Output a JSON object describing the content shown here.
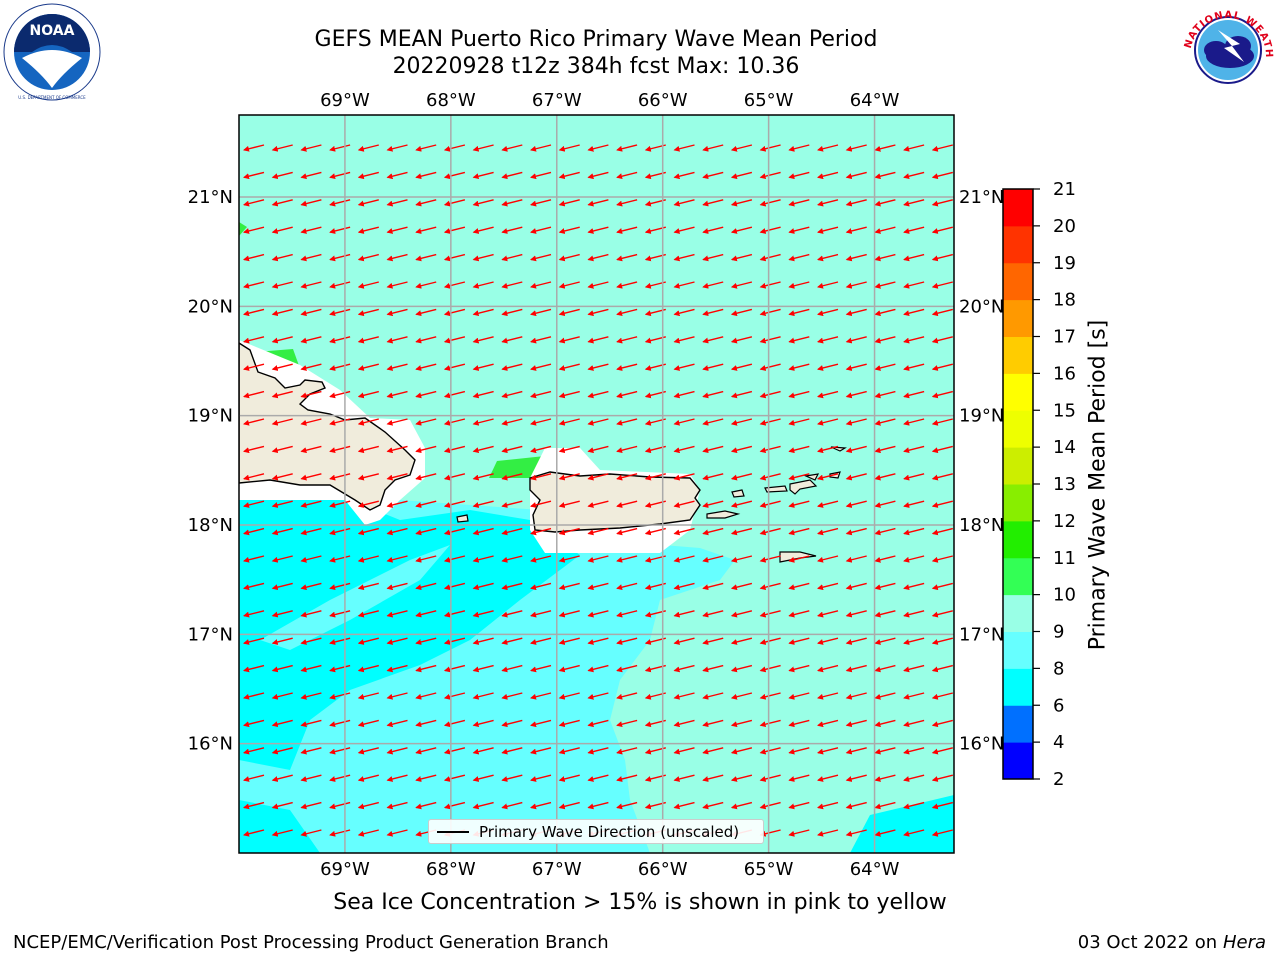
{
  "title": {
    "line1": "GEFS MEAN Puerto Rico Primary Wave Mean Period",
    "line2": "20220928 t12z 384h fcst   Max: 10.36"
  },
  "logos": {
    "left": {
      "icon": "noaa-logo",
      "text": "NOAA",
      "ring_text": "NATIONAL OCEANIC AND ATMOSPHERIC ADMINISTRATION · U.S. DEPARTMENT OF COMMERCE"
    },
    "right": {
      "icon": "nws-logo",
      "ring_text": "NATIONAL WEATHER SERVICE"
    }
  },
  "map": {
    "lon_labels": [
      "69°W",
      "68°W",
      "67°W",
      "66°W",
      "65°W",
      "64°W"
    ],
    "lat_labels": [
      "21°N",
      "20°N",
      "19°N",
      "18°N",
      "17°N",
      "16°N"
    ],
    "lon_values": [
      -69,
      -68,
      -67,
      -66,
      -65,
      -64
    ],
    "lat_values": [
      21,
      20,
      19,
      18,
      17,
      16
    ],
    "lon_range": [
      -70,
      -63.25
    ],
    "lat_range": [
      15,
      21.75
    ],
    "arrow_color": "#ff0000",
    "land_color": "#f0ecdc",
    "legend_label": "Primary Wave Direction (unscaled)"
  },
  "colorbar": {
    "title": "Primary Wave Mean Period [s]",
    "levels": [
      2,
      4,
      6,
      8,
      9,
      10,
      11,
      12,
      13,
      14,
      15,
      16,
      17,
      18,
      19,
      20,
      21
    ],
    "tick_labels": [
      "2",
      "4",
      "6",
      "8",
      "9",
      "10",
      "11",
      "12",
      "13",
      "14",
      "15",
      "16",
      "17",
      "18",
      "19",
      "20",
      "21"
    ],
    "colors": [
      "#0000ff",
      "#0070ff",
      "#00ffff",
      "#66ffff",
      "#99ffe6",
      "#33ff55",
      "#22ee00",
      "#88ee00",
      "#ccee00",
      "#eeff00",
      "#ffff00",
      "#ffcc00",
      "#ff9900",
      "#ff6600",
      "#ff3300",
      "#ff0000"
    ]
  },
  "subtitle": "Sea Ice Concentration > 15% is shown in pink to yellow",
  "footer": {
    "left": "NCEP/EMC/Verification Post Processing Product Generation Branch",
    "right_prefix": "03 Oct 2022 on ",
    "right_machine": "Hera"
  }
}
